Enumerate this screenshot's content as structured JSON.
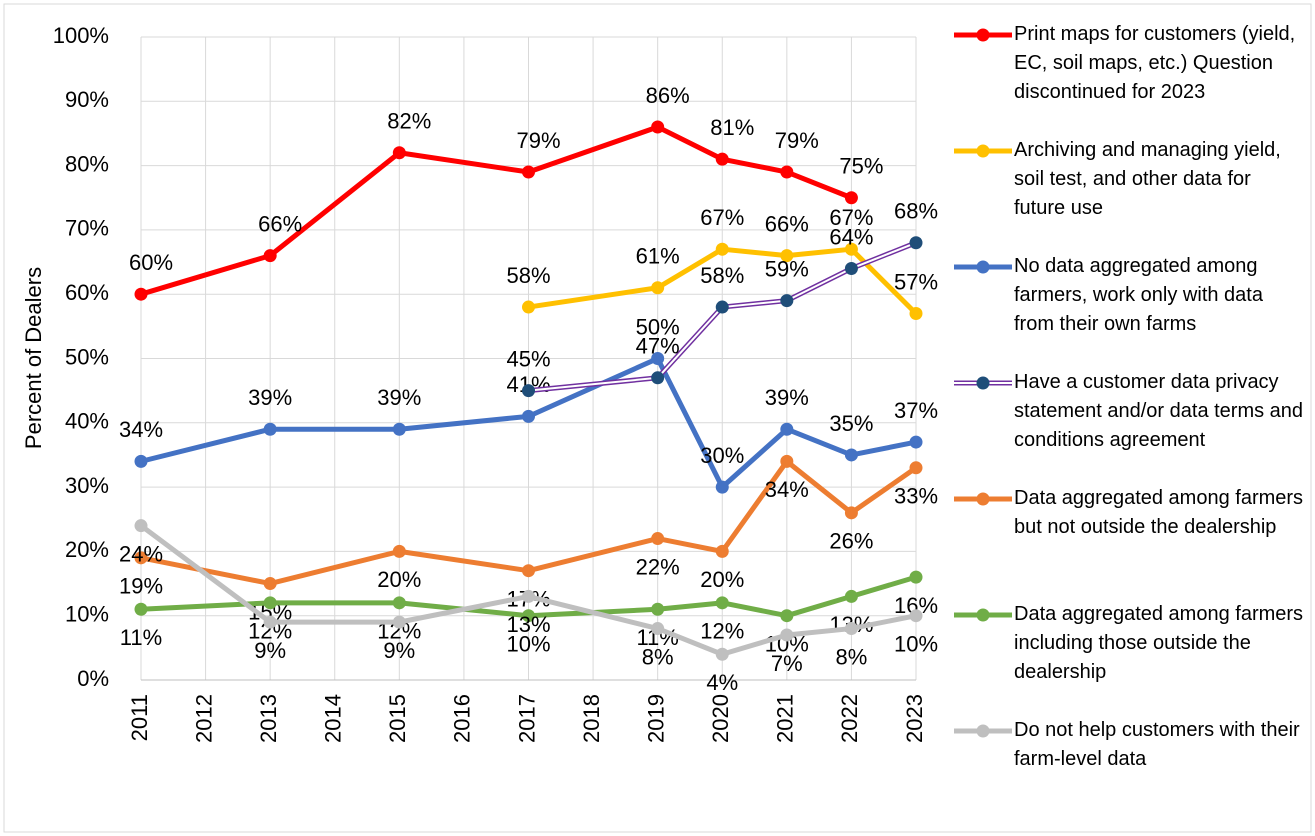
{
  "chart_data": {
    "type": "line",
    "y_label": "Percent of Dealers",
    "x": [
      2011,
      2013,
      2015,
      2017,
      2019,
      2020,
      2021,
      2022,
      2023
    ],
    "xlim": [
      2011,
      2023
    ],
    "xticks": [
      2011,
      2012,
      2013,
      2014,
      2015,
      2016,
      2017,
      2018,
      2019,
      2020,
      2021,
      2022,
      2023
    ],
    "ylim": [
      0,
      100
    ],
    "yticks": [
      {
        "value": 0,
        "label": "0%"
      },
      {
        "value": 10,
        "label": "10%"
      },
      {
        "value": 20,
        "label": "20%"
      },
      {
        "value": 30,
        "label": "30%"
      },
      {
        "value": 40,
        "label": "40%"
      },
      {
        "value": 50,
        "label": "50%"
      },
      {
        "value": 60,
        "label": "60%"
      },
      {
        "value": 70,
        "label": "70%"
      },
      {
        "value": 80,
        "label": "80%"
      },
      {
        "value": 90,
        "label": "90%"
      },
      {
        "value": 100,
        "label": "100%"
      }
    ],
    "grid": true,
    "legend": "right",
    "series": [
      {
        "name": "Print maps for customers (yield, EC, soil maps, etc.) Question discontinued for 2023",
        "color": "#ff0000",
        "values": [
          60,
          66,
          82,
          79,
          86,
          81,
          79,
          75,
          null
        ],
        "value_labels": [
          "60%",
          "66%",
          "82%",
          "79%",
          "86%",
          "81%",
          "79%",
          "75%",
          null
        ]
      },
      {
        "name": "Archiving and managing yield, soil test, and other data for future use",
        "color": "#ffc000",
        "values": [
          null,
          null,
          null,
          58,
          61,
          67,
          66,
          67,
          57
        ],
        "value_labels": [
          null,
          null,
          null,
          "58%",
          "61%",
          "67%",
          "66%",
          "67%",
          "57%"
        ]
      },
      {
        "name": "No data aggregated among farmers, work only with data from their own farms",
        "color": "#4472c4",
        "values": [
          34,
          39,
          39,
          41,
          50,
          30,
          39,
          35,
          37
        ],
        "value_labels": [
          "34%",
          "39%",
          "39%",
          "41%",
          "50%",
          "30%",
          "39%",
          "35%",
          "37%"
        ]
      },
      {
        "name": "Have a customer data privacy statement and/or data terms and conditions agreement",
        "color": "#7030a0",
        "values": [
          null,
          null,
          null,
          45,
          47,
          58,
          59,
          64,
          68
        ],
        "value_labels": [
          null,
          null,
          null,
          "45%",
          "47%",
          "58%",
          "59%",
          "64%",
          "68%"
        ]
      },
      {
        "name": "Data aggregated among farmers but not outside the dealership",
        "color": "#ed7d31",
        "values": [
          19,
          15,
          20,
          17,
          22,
          20,
          34,
          26,
          33
        ],
        "value_labels": [
          "19%",
          "15%",
          "20%",
          "17%",
          "22%",
          "20%",
          "34%",
          "26%",
          "33%"
        ]
      },
      {
        "name": "Data aggregated among farmers including those outside the dealership",
        "color": "#70ad47",
        "values": [
          11,
          12,
          12,
          10,
          11,
          12,
          10,
          13,
          16
        ],
        "value_labels": [
          "11%",
          "12%",
          "12%",
          "10%",
          "11%",
          "12%",
          "10%",
          "13%",
          "16%"
        ]
      },
      {
        "name": "Do not help customers with their farm-level data",
        "color": "#bfbfbf",
        "values": [
          24,
          9,
          9,
          13,
          8,
          4,
          7,
          8,
          10
        ],
        "value_labels": [
          "24%",
          "9%",
          "9%",
          "13%",
          "8%",
          "4%",
          "7%",
          "8%",
          "10%"
        ]
      }
    ]
  }
}
